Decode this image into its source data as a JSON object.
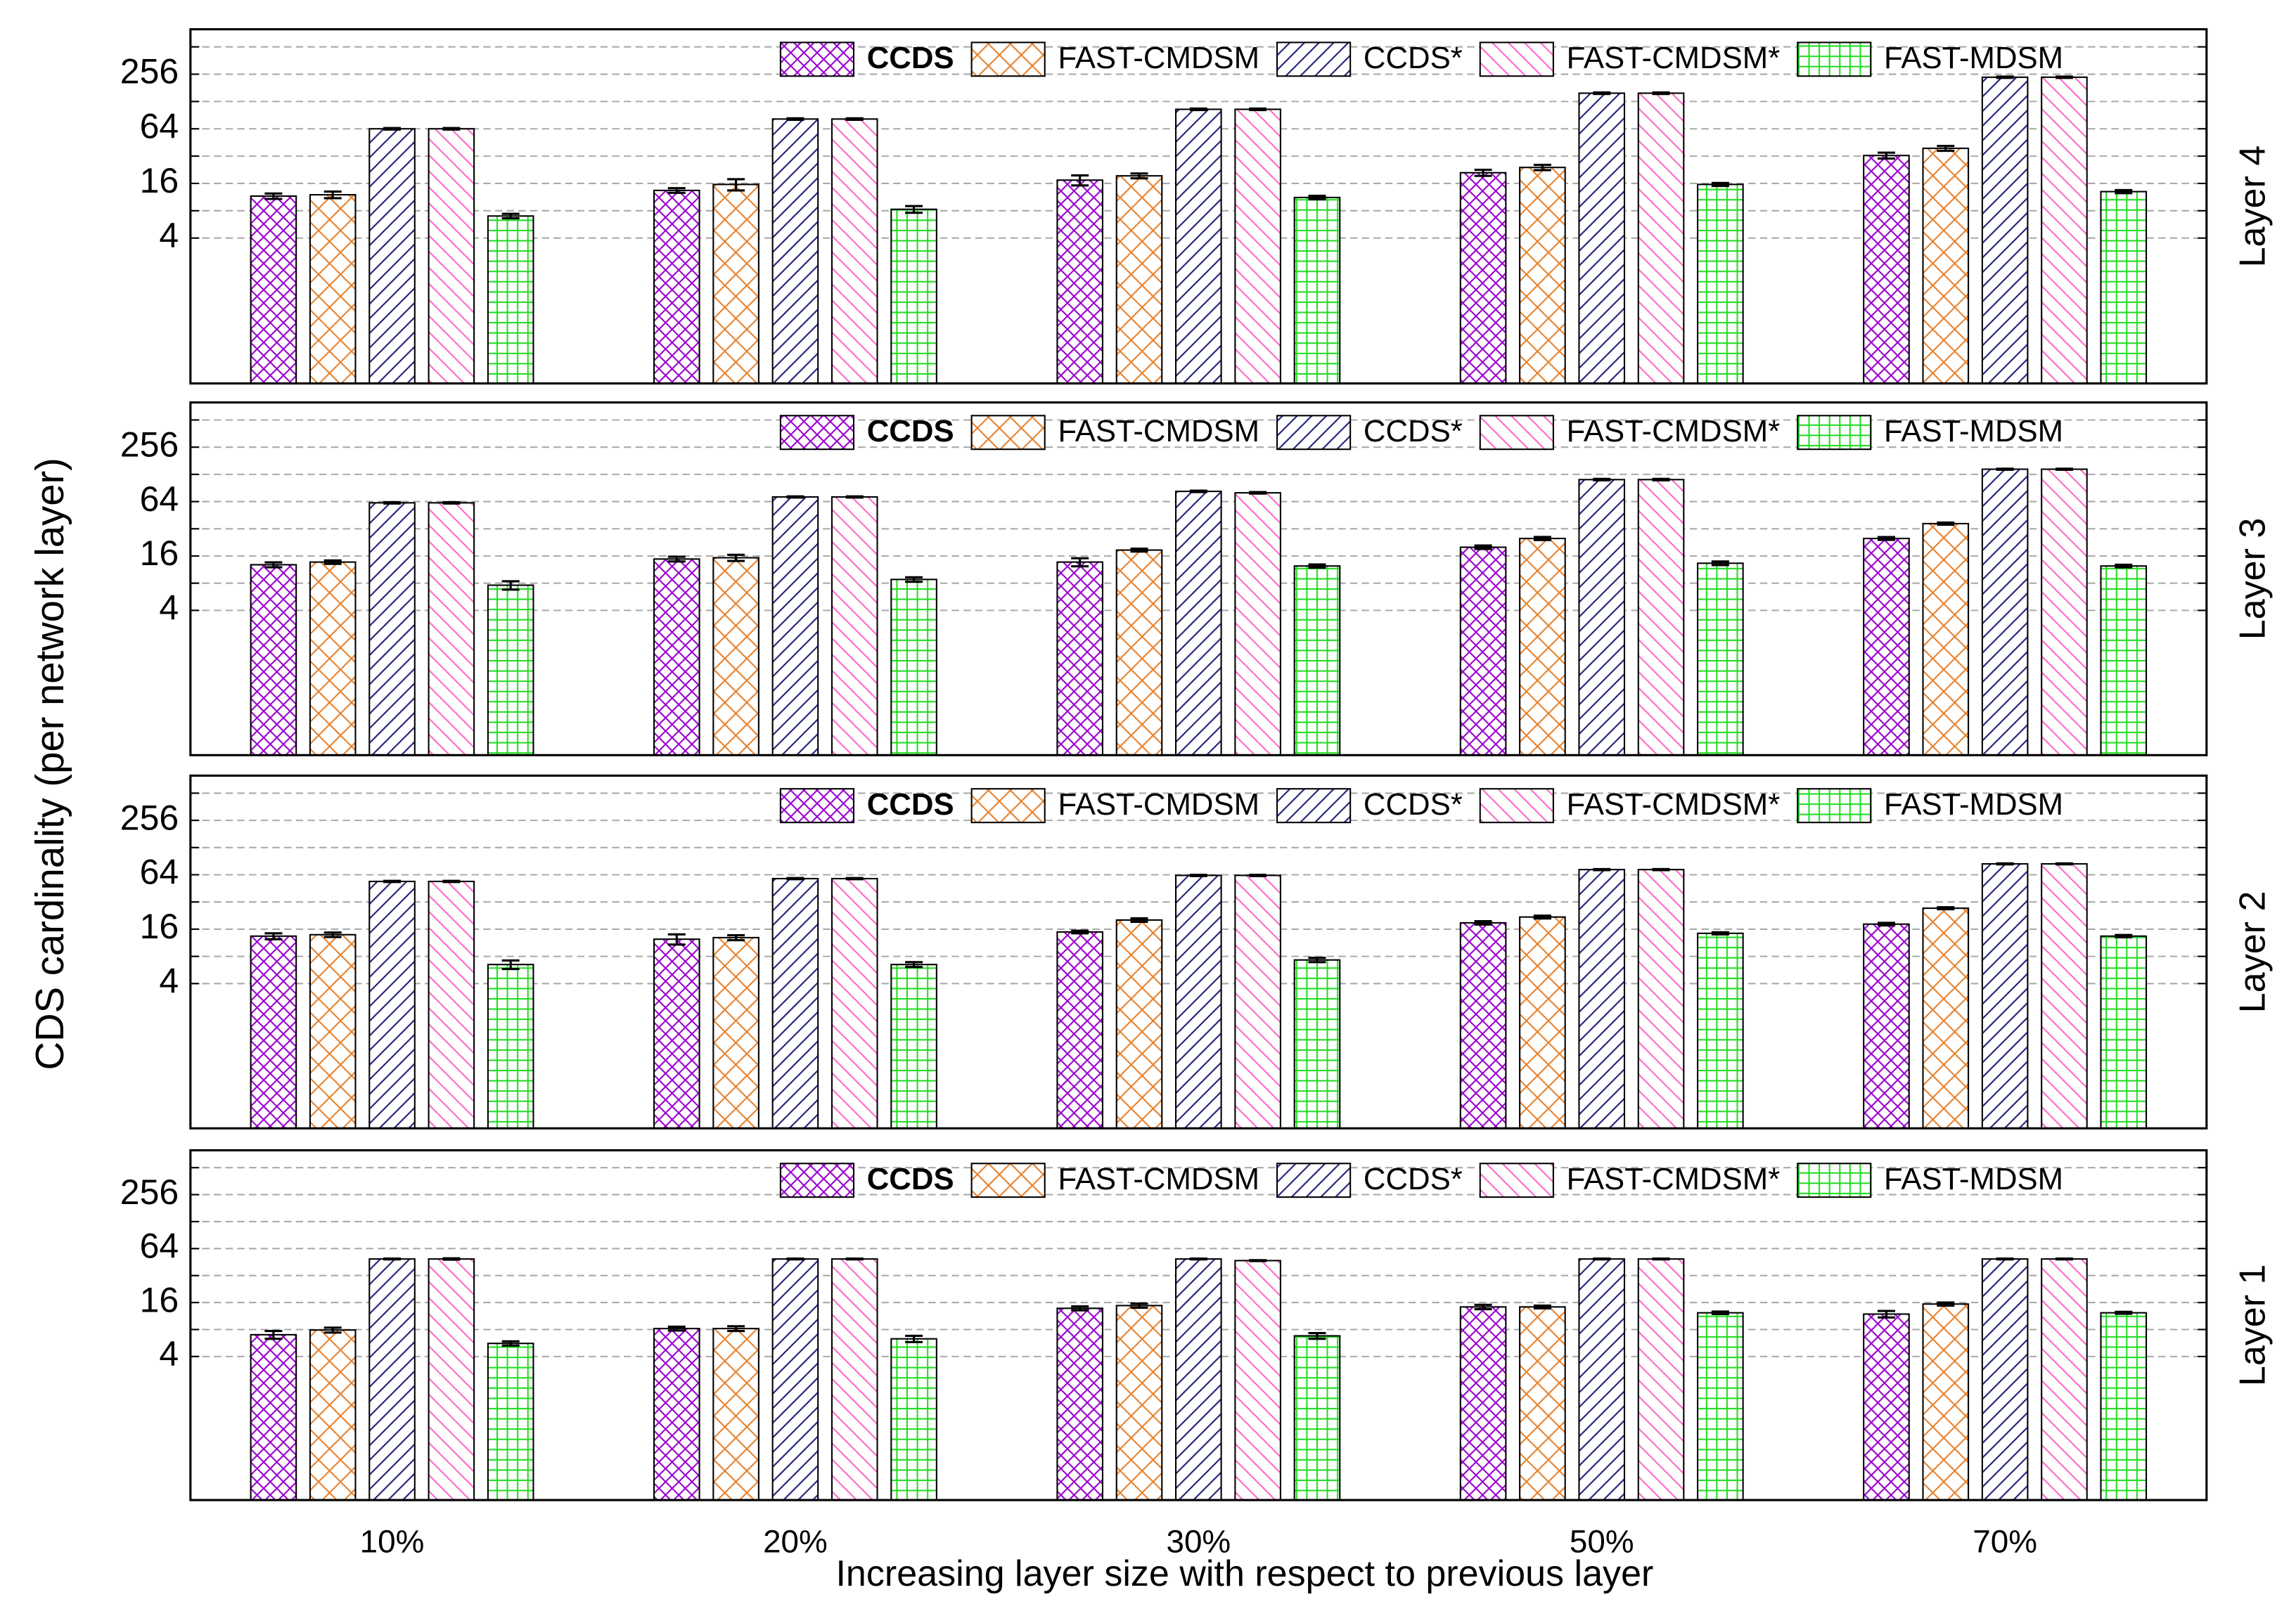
{
  "chart_data": [
    {
      "type": "bar",
      "panel_label": "Layer 4",
      "ylabel": "CDS cardinality (per network layer)",
      "yscale": "log",
      "grid": true,
      "ylim": [
        0.1,
        800
      ],
      "yticks": [
        4,
        16,
        64,
        256
      ],
      "minor_yticks": [
        8,
        32,
        128,
        512
      ],
      "series": [
        {
          "name": "CCDS",
          "color": "#9900cc",
          "hatch": "crosshatch-fine",
          "bold": true,
          "values": [
            11.6,
            13.4,
            17.4,
            21,
            32.5
          ],
          "errors": [
            0.8,
            0.8,
            2.2,
            1.6,
            2.4
          ]
        },
        {
          "name": "FAST-CMDSM",
          "color": "#e6822e",
          "hatch": "crosshatch",
          "values": [
            12,
            15.6,
            19.4,
            24,
            39
          ],
          "errors": [
            1.0,
            2.2,
            1.2,
            1.6,
            2.4
          ]
        },
        {
          "name": "CCDS*",
          "color": "#1f1f7a",
          "hatch": "diagonal",
          "values": [
            64,
            82,
            105,
            158,
            237
          ],
          "errors": [
            1.2,
            1.5,
            2,
            3,
            4
          ]
        },
        {
          "name": "FAST-CMDSM*",
          "color": "#ff69c8",
          "hatch": "back-diagonal",
          "values": [
            64,
            82,
            105,
            158,
            237
          ],
          "errors": [
            1.2,
            1.5,
            2,
            3,
            4
          ]
        },
        {
          "name": "FAST-MDSM",
          "color": "#22dd22",
          "hatch": "grid",
          "values": [
            7.0,
            8.3,
            11.2,
            15.6,
            13
          ],
          "errors": [
            0.4,
            0.7,
            0.5,
            0.6,
            0.5
          ]
        }
      ]
    },
    {
      "type": "bar",
      "panel_label": "Layer 3",
      "yscale": "log",
      "grid": true,
      "ylim": [
        0.1,
        800
      ],
      "yticks": [
        4,
        16,
        64,
        256
      ],
      "minor_yticks": [
        8,
        32,
        128,
        512
      ],
      "series": [
        {
          "name": "CCDS",
          "color": "#9900cc",
          "hatch": "crosshatch-fine",
          "bold": true,
          "values": [
            12.8,
            14.8,
            13.7,
            20,
            25
          ],
          "errors": [
            0.8,
            0.9,
            1.4,
            0.9,
            0.9
          ]
        },
        {
          "name": "FAST-CMDSM",
          "color": "#e6822e",
          "hatch": "crosshatch",
          "values": [
            13.7,
            15.3,
            18.6,
            25,
            36.5
          ],
          "errors": [
            0.6,
            1.2,
            0.7,
            1.0,
            1.0
          ]
        },
        {
          "name": "CCDS*",
          "color": "#1f1f7a",
          "hatch": "diagonal",
          "values": [
            62,
            72,
            83,
            112,
            146
          ],
          "errors": [
            1,
            1,
            1.5,
            2,
            2
          ]
        },
        {
          "name": "FAST-CMDSM*",
          "color": "#ff69c8",
          "hatch": "back-diagonal",
          "values": [
            62,
            72,
            80,
            112,
            146
          ],
          "errors": [
            1,
            1,
            1.5,
            2,
            2
          ]
        },
        {
          "name": "FAST-MDSM",
          "color": "#22dd22",
          "hatch": "grid",
          "values": [
            7.6,
            8.8,
            12.4,
            13.3,
            12.4
          ],
          "errors": [
            0.8,
            0.5,
            0.5,
            0.6,
            0.4
          ]
        }
      ]
    },
    {
      "type": "bar",
      "panel_label": "Layer 2",
      "yscale": "log",
      "grid": true,
      "ylim": [
        0.1,
        800
      ],
      "yticks": [
        4,
        16,
        64,
        256
      ],
      "minor_yticks": [
        8,
        32,
        128,
        512
      ],
      "series": [
        {
          "name": "CCDS",
          "color": "#9900cc",
          "hatch": "crosshatch-fine",
          "bold": true,
          "values": [
            13.4,
            12.4,
            14.9,
            18.8,
            18.2
          ],
          "errors": [
            1.0,
            1.6,
            0.5,
            0.8,
            0.6
          ]
        },
        {
          "name": "FAST-CMDSM",
          "color": "#e6822e",
          "hatch": "crosshatch",
          "values": [
            13.9,
            12.9,
            20.2,
            21.8,
            27.3
          ],
          "errors": [
            0.8,
            0.8,
            0.9,
            0.8,
            0.7
          ]
        },
        {
          "name": "CCDS*",
          "color": "#1f1f7a",
          "hatch": "diagonal",
          "values": [
            54,
            58,
            63,
            73,
            84.5
          ],
          "errors": [
            0.8,
            0.8,
            1,
            1,
            1
          ]
        },
        {
          "name": "FAST-CMDSM*",
          "color": "#ff69c8",
          "hatch": "back-diagonal",
          "values": [
            54,
            58,
            63,
            73,
            84.5
          ],
          "errors": [
            0.8,
            0.8,
            1,
            1,
            1
          ]
        },
        {
          "name": "FAST-MDSM",
          "color": "#22dd22",
          "hatch": "grid",
          "values": [
            6.5,
            6.5,
            7.3,
            14.4,
            13.4
          ],
          "errors": [
            0.7,
            0.4,
            0.4,
            0.4,
            0.4
          ]
        }
      ]
    },
    {
      "type": "bar",
      "panel_label": "Layer 1",
      "xlabel": "Increasing layer size with respect to previous layer",
      "yscale": "log",
      "grid": true,
      "categories": [
        "10%",
        "20%",
        "30%",
        "50%",
        "70%"
      ],
      "ylim": [
        0.1,
        800
      ],
      "yticks": [
        4,
        16,
        64,
        256
      ],
      "minor_yticks": [
        8,
        32,
        128,
        512
      ],
      "series": [
        {
          "name": "CCDS",
          "color": "#9900cc",
          "hatch": "crosshatch-fine",
          "bold": true,
          "values": [
            7.0,
            8.2,
            13.8,
            14.3,
            11.9
          ],
          "errors": [
            0.7,
            0.4,
            0.7,
            0.8,
            1.0
          ]
        },
        {
          "name": "FAST-CMDSM",
          "color": "#e6822e",
          "hatch": "crosshatch",
          "values": [
            7.9,
            8.2,
            14.8,
            14.3,
            15.4
          ],
          "errors": [
            0.5,
            0.5,
            0.8,
            0.5,
            0.6
          ]
        },
        {
          "name": "CCDS*",
          "color": "#1f1f7a",
          "hatch": "diagonal",
          "values": [
            49,
            49,
            49,
            49,
            49
          ],
          "errors": [
            0.5,
            0.5,
            0.5,
            0.5,
            0.5
          ]
        },
        {
          "name": "FAST-CMDSM*",
          "color": "#ff69c8",
          "hatch": "back-diagonal",
          "values": [
            49,
            49,
            47,
            49,
            49
          ],
          "errors": [
            0.8,
            0.5,
            0.5,
            0.5,
            0.5
          ]
        },
        {
          "name": "FAST-MDSM",
          "color": "#22dd22",
          "hatch": "grid",
          "values": [
            5.6,
            6.3,
            6.8,
            12.3,
            12.3
          ],
          "errors": [
            0.3,
            0.5,
            0.5,
            0.4,
            0.3
          ]
        }
      ]
    }
  ]
}
